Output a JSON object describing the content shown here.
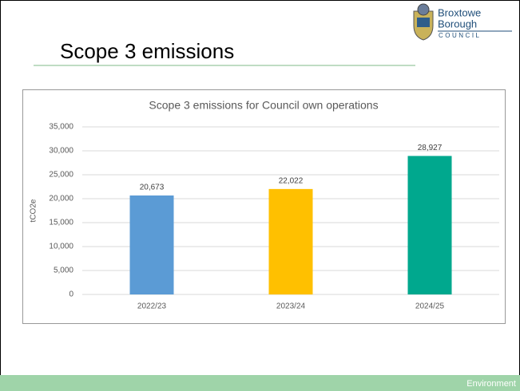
{
  "slide": {
    "title": "Scope 3 emissions",
    "logo": [
      "Broxtowe",
      "Borough",
      "COUNCIL"
    ],
    "footer": "Environment"
  },
  "chart_data": {
    "type": "bar",
    "title": "Scope 3 emissions for Council own operations",
    "y_label": "tCO2e",
    "categories": [
      "2022/23",
      "2023/24",
      "2024/25"
    ],
    "values": [
      20673,
      22022,
      28927
    ],
    "value_labels": [
      "20,673",
      "22,022",
      "28,927"
    ],
    "colors": [
      "#5b9bd5",
      "#ffc000",
      "#00a88e"
    ],
    "ylim": [
      0,
      35000
    ],
    "yticks": [
      0,
      {
        "value": 5000,
        "label": "5,000"
      },
      {
        "value": 10000,
        "label": "10,000"
      },
      {
        "value": 15000,
        "label": "15,000"
      },
      {
        "value": 20000,
        "label": "20,000"
      },
      {
        "value": 25000,
        "label": "25,000"
      },
      {
        "value": 30000,
        "label": "30,000"
      },
      {
        "value": 35000,
        "label": "35,000"
      }
    ],
    "grid": true
  }
}
